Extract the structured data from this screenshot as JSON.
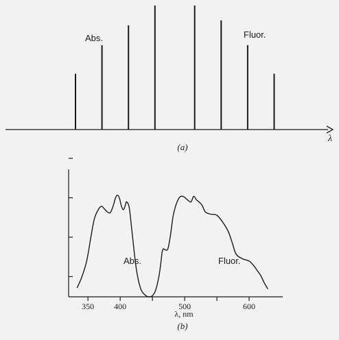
{
  "chart_data": [
    {
      "type": "bar",
      "panel_label": "(a)",
      "xlabel": "λ",
      "annotations": [
        "Abs.",
        "Fluor."
      ],
      "axis": {
        "x_ticks": false,
        "y_axis": false,
        "arrow": true
      },
      "lines": [
        {
          "x": 1,
          "height": 0.45
        },
        {
          "x": 2,
          "height": 0.68
        },
        {
          "x": 3,
          "height": 0.84
        },
        {
          "x": 4,
          "height": 1.0
        },
        {
          "x": 5.5,
          "height": 1.0
        },
        {
          "x": 6.5,
          "height": 0.88
        },
        {
          "x": 7.5,
          "height": 0.68
        },
        {
          "x": 8.5,
          "height": 0.45
        }
      ]
    },
    {
      "type": "line",
      "panel_label": "(b)",
      "xlabel": "λ, nm",
      "xlim": [
        320,
        650
      ],
      "xticks": [
        350,
        400,
        450,
        500,
        550,
        600
      ],
      "xtick_labels": [
        "350",
        "400",
        "",
        "500",
        "",
        "600"
      ],
      "y_ticks_shown": 4,
      "grid": false,
      "annotations": [
        "Abs.",
        "Fluor."
      ],
      "series": [
        {
          "x": [
            333,
            340,
            348,
            355,
            360,
            366,
            371,
            375,
            380,
            384,
            387,
            390,
            393,
            396,
            399,
            402,
            405,
            408,
            410,
            414,
            418,
            425,
            432,
            440,
            445,
            450,
            455,
            460,
            463,
            465,
            467,
            470,
            474,
            478,
            482,
            487,
            492,
            497,
            502,
            506,
            510,
            514,
            518,
            522,
            527,
            532,
            540,
            550,
            560,
            568,
            574,
            580,
            590,
            600,
            607,
            612,
            618,
            623,
            626,
            629
          ],
          "y": [
            0.08,
            0.17,
            0.32,
            0.55,
            0.7,
            0.78,
            0.81,
            0.79,
            0.76,
            0.75,
            0.78,
            0.83,
            0.89,
            0.91,
            0.88,
            0.81,
            0.78,
            0.82,
            0.85,
            0.8,
            0.6,
            0.25,
            0.07,
            0.01,
            0.0,
            0.01,
            0.06,
            0.18,
            0.3,
            0.4,
            0.43,
            0.42,
            0.43,
            0.55,
            0.72,
            0.83,
            0.89,
            0.9,
            0.88,
            0.86,
            0.85,
            0.9,
            0.87,
            0.85,
            0.82,
            0.76,
            0.74,
            0.73,
            0.66,
            0.58,
            0.48,
            0.38,
            0.34,
            0.32,
            0.28,
            0.24,
            0.19,
            0.13,
            0.1,
            0.07
          ]
        }
      ]
    }
  ]
}
